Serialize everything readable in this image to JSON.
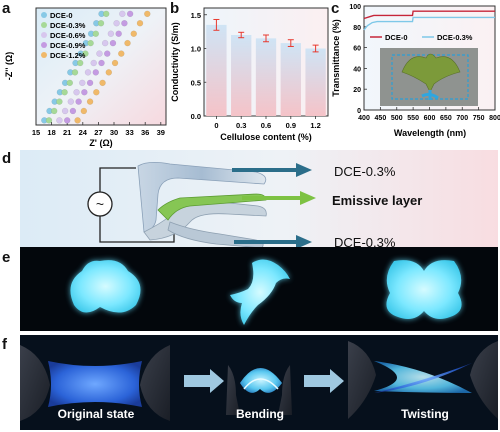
{
  "panels": {
    "a": "a",
    "b": "b",
    "c": "c",
    "d": "d",
    "e": "e",
    "f": "f"
  },
  "colors": {
    "dce0": "#87c9e6",
    "dce03": "#a6d998",
    "dce06": "#d7c7ee",
    "dce09": "#c49be2",
    "dce12": "#f0b96a",
    "bar_top": "#cfe4f5",
    "bar_bottom": "#f5c3c8",
    "error_bar": "#e8392f",
    "trans_dce0": "#c6263a",
    "trans_dce03": "#7ec8e8",
    "arrow_blue": "#2b6e8a",
    "arrow_green": "#7dc243",
    "glow": "#7ce8ff"
  },
  "chart_data": [
    {
      "type": "scatter",
      "panel": "a",
      "xlabel": "Z' (Ω)",
      "ylabel": "-Z'' (Ω)",
      "xticks": [
        "15",
        "18",
        "21",
        "24",
        "27",
        "30",
        "33",
        "36",
        "39"
      ],
      "xlim": [
        15,
        40
      ],
      "ylim": [
        0,
        100
      ],
      "legend": [
        "DCE-0",
        "DCE-0.3%",
        "DCE-0.6%",
        "DCE-0.9%",
        "DCE-1.2%"
      ],
      "legend_position": "top-left",
      "series": [
        {
          "name": "DCE-0",
          "x": [
            16.6,
            17.6,
            18.6,
            19.6,
            20.6,
            21.6,
            22.6,
            23.6,
            24.6,
            25.6,
            26.6,
            27.6
          ],
          "y": [
            4,
            12,
            20,
            28,
            36,
            45,
            53,
            61,
            70,
            78,
            87,
            95
          ]
        },
        {
          "name": "DCE-0.3%",
          "x": [
            17.5,
            18.5,
            19.5,
            20.5,
            21.5,
            22.5,
            23.5,
            24.5,
            25.5,
            26.5,
            27.5,
            28.5
          ],
          "y": [
            4,
            12,
            20,
            28,
            36,
            45,
            53,
            61,
            70,
            78,
            87,
            95
          ]
        },
        {
          "name": "DCE-0.6%",
          "x": [
            19.5,
            20.6,
            21.7,
            22.8,
            23.9,
            25.0,
            26.1,
            27.2,
            28.3,
            29.4,
            30.5,
            31.6
          ],
          "y": [
            4,
            12,
            20,
            28,
            36,
            45,
            53,
            61,
            70,
            78,
            87,
            95
          ]
        },
        {
          "name": "DCE-0.9%",
          "x": [
            21.0,
            22.1,
            23.2,
            24.3,
            25.4,
            26.5,
            27.6,
            28.7,
            29.8,
            30.9,
            32.0,
            33.1
          ],
          "y": [
            4,
            12,
            20,
            28,
            36,
            45,
            53,
            61,
            70,
            78,
            87,
            95
          ]
        },
        {
          "name": "DCE-1.2%",
          "x": [
            23.0,
            24.2,
            25.4,
            26.6,
            27.8,
            29.0,
            30.2,
            31.4,
            32.6,
            33.8,
            35.0,
            36.4
          ],
          "y": [
            4,
            12,
            20,
            28,
            36,
            45,
            53,
            61,
            70,
            78,
            87,
            95
          ]
        }
      ]
    },
    {
      "type": "bar",
      "panel": "b",
      "xlabel": "Cellulose content (%)",
      "ylabel": "Conductivity (S/m)",
      "categories": [
        "0",
        "0.3",
        "0.6",
        "0.9",
        "1.2"
      ],
      "values": [
        1.35,
        1.2,
        1.15,
        1.08,
        1.0
      ],
      "errors": [
        0.08,
        0.04,
        0.05,
        0.05,
        0.05
      ],
      "yticks": [
        "0.0",
        "0.5",
        "1.0",
        "1.5"
      ],
      "ylim": [
        0,
        1.6
      ]
    },
    {
      "type": "line",
      "panel": "c",
      "xlabel": "Wavelength (nm)",
      "ylabel": "Transmittance (%)",
      "xticks": [
        "400",
        "450",
        "500",
        "550",
        "600",
        "650",
        "700",
        "750",
        "800"
      ],
      "yticks": [
        "0",
        "20",
        "40",
        "60",
        "80",
        "100"
      ],
      "xlim": [
        400,
        800
      ],
      "ylim": [
        0,
        100
      ],
      "legend": [
        "DCE-0",
        "DCE-0.3%"
      ],
      "legend_position": "top",
      "series": [
        {
          "name": "DCE-0",
          "x": [
            400,
            420,
            430,
            440,
            500,
            548,
            550,
            560,
            600,
            700,
            800
          ],
          "y": [
            88,
            90,
            91,
            91,
            91,
            91,
            95,
            95,
            95,
            95,
            95
          ]
        },
        {
          "name": "DCE-0.3%",
          "x": [
            400,
            410,
            425,
            440,
            500,
            548,
            550,
            560,
            600,
            700,
            800
          ],
          "y": [
            77,
            81,
            84,
            85,
            85,
            85,
            89,
            89,
            89,
            89,
            89
          ]
        }
      ]
    }
  ],
  "panel_d": {
    "labels": [
      "DCE-0.3%",
      "Emissive layer",
      "DCE-0.3%"
    ],
    "ac_symbol": "~"
  },
  "panel_f": {
    "captions": [
      "Original state",
      "Bending",
      "Twisting"
    ]
  }
}
